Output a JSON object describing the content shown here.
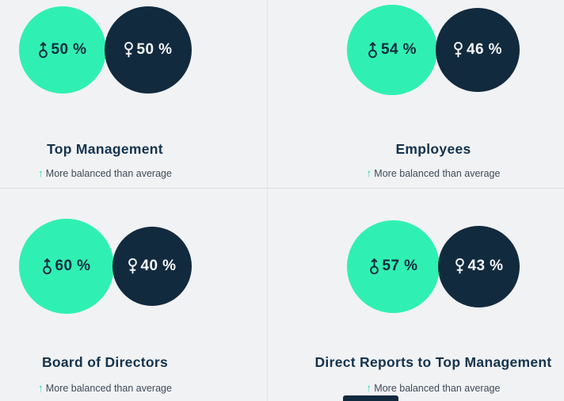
{
  "colors": {
    "male_circle": "#2FF0B2",
    "female_circle": "#122A3E",
    "canvas_bg": "#F1F2F4",
    "title_text": "#14334D",
    "note_text": "#3E4B59",
    "trend_arrow": "#2FD9A6",
    "divider_v": "#E4E5E9",
    "divider_h": "#DEDFD8",
    "pct_on_male": "#122A3E",
    "pct_on_female": "#F5F7F9"
  },
  "chart_data": {
    "type": "table",
    "visual": "proportional-circle-pairs",
    "title": "",
    "categories": [
      "Top Management",
      "Employees",
      "Board of Directors",
      "Direct Reports to Top Management"
    ],
    "series": [
      {
        "name": "Male",
        "unit": "%",
        "color": "#2FF0B2",
        "values": [
          50,
          54,
          60,
          57
        ]
      },
      {
        "name": "Female",
        "unit": "%",
        "color": "#122A3E",
        "values": [
          50,
          46,
          40,
          43
        ]
      }
    ],
    "annotations": [
      "More balanced than average",
      "More balanced than average",
      "More balanced than average",
      "More balanced than average"
    ],
    "legend_position": "none",
    "grid": false
  },
  "cells": [
    {
      "title": "Top Management",
      "male": {
        "value": 50,
        "label": "50 %"
      },
      "female": {
        "value": 50,
        "label": "50 %"
      },
      "trend_arrow": "↑",
      "trend_text": "More balanced than average"
    },
    {
      "title": "Employees",
      "male": {
        "value": 54,
        "label": "54 %"
      },
      "female": {
        "value": 46,
        "label": "46 %"
      },
      "trend_arrow": "↑",
      "trend_text": "More balanced than average"
    },
    {
      "title": "Board of Directors",
      "male": {
        "value": 60,
        "label": "60 %"
      },
      "female": {
        "value": 40,
        "label": "40 %"
      },
      "trend_arrow": "↑",
      "trend_text": "More balanced than average"
    },
    {
      "title": "Direct Reports to Top Management",
      "male": {
        "value": 57,
        "label": "57 %"
      },
      "female": {
        "value": 43,
        "label": "43 %"
      },
      "trend_arrow": "↑",
      "trend_text": "More balanced than average"
    }
  ]
}
